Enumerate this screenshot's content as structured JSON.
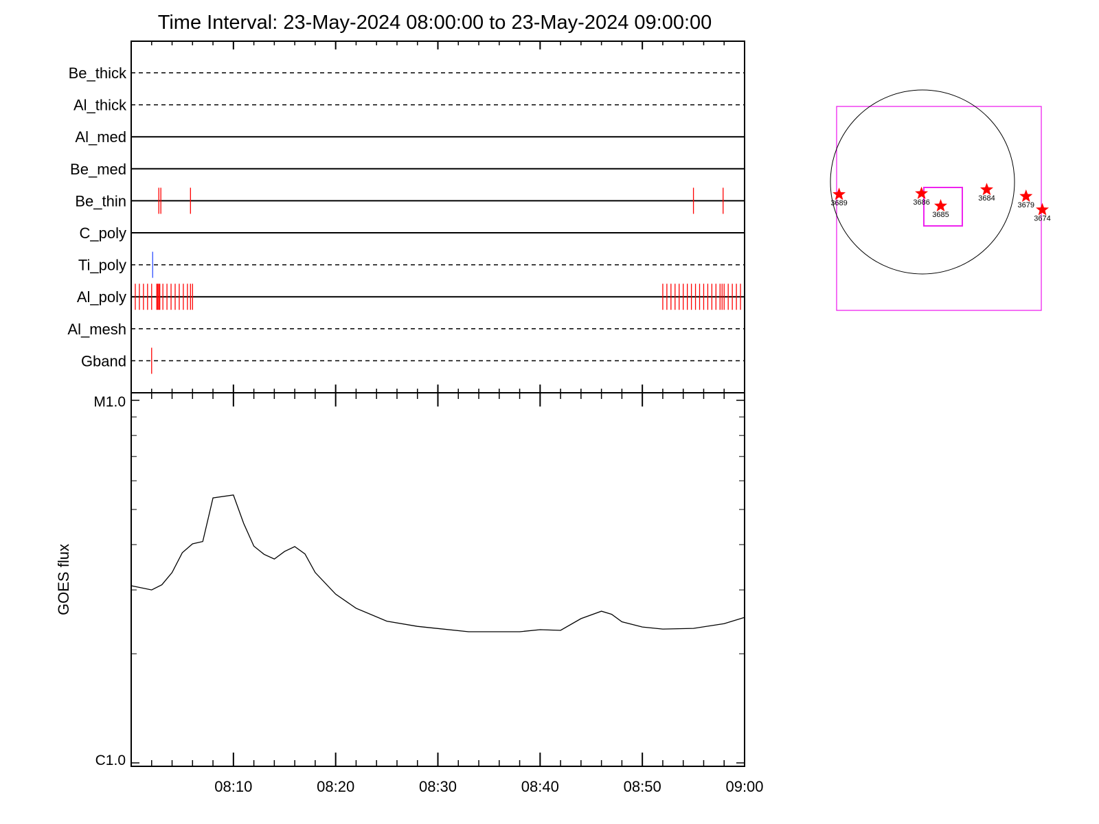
{
  "title": "Time Interval: 23-May-2024 08:00:00 to 23-May-2024 09:00:00",
  "colors": {
    "axis": "#000000",
    "event_red": "#ff0000",
    "event_blue": "#3050ff",
    "box": "#ee22ee",
    "star": "#ff0000"
  },
  "chart_data": [
    {
      "type": "event-timeline",
      "x_range": [
        "08:00",
        "09:00"
      ],
      "x_unit": "minutes after 08:00",
      "channels": [
        {
          "name": "Be_thick",
          "line": "dashed",
          "events": []
        },
        {
          "name": "Al_thick",
          "line": "dashed",
          "events": []
        },
        {
          "name": "Al_med",
          "line": "solid",
          "events": []
        },
        {
          "name": "Be_med",
          "line": "solid",
          "events": []
        },
        {
          "name": "Be_thin",
          "line": "solid",
          "color": "#ff0000",
          "events": [
            2.7,
            2.9,
            5.8,
            55.0,
            57.9
          ]
        },
        {
          "name": "C_poly",
          "line": "solid",
          "events": []
        },
        {
          "name": "Ti_poly",
          "line": "dashed",
          "color": "#3050ff",
          "events": [
            2.1
          ]
        },
        {
          "name": "Al_poly",
          "line": "solid",
          "color": "#ff0000",
          "events": [
            0.4,
            0.8,
            1.2,
            1.6,
            2.0,
            2.5,
            2.6,
            2.7,
            2.8,
            3.1,
            3.5,
            3.9,
            4.3,
            4.7,
            5.1,
            5.5,
            5.8,
            6.0,
            52.0,
            52.4,
            52.8,
            53.2,
            53.6,
            54.0,
            54.4,
            54.8,
            55.2,
            55.6,
            56.0,
            56.4,
            56.8,
            57.2,
            57.6,
            57.8,
            58.0,
            58.4,
            58.8,
            59.2,
            59.6
          ]
        },
        {
          "name": "Al_mesh",
          "line": "dashed",
          "events": []
        },
        {
          "name": "Gband",
          "line": "dashed",
          "color": "#ff0000",
          "events": [
            2.0
          ]
        }
      ]
    },
    {
      "type": "line",
      "ylabel": "GOES flux",
      "y_ticks": [
        "M1.0",
        "C1.0"
      ],
      "y_scale": "log",
      "ylim": [
        1e-06,
        1e-05
      ],
      "x_ticks": [
        "08:10",
        "08:20",
        "08:30",
        "08:40",
        "08:50",
        "09:00"
      ],
      "x_range": [
        "08:00",
        "09:00"
      ],
      "series": [
        {
          "x": [
            0,
            2,
            3,
            4,
            5,
            6,
            7,
            8,
            10,
            11,
            12,
            13,
            14,
            15,
            16,
            17,
            18,
            20,
            22,
            25,
            28,
            33,
            38,
            40,
            42,
            44,
            46,
            47,
            48,
            50,
            52,
            55,
            58,
            60
          ],
          "y": [
            3.08e-06,
            3e-06,
            3.1e-06,
            3.35e-06,
            3.8e-06,
            4.02e-06,
            4.08e-06,
            5.38e-06,
            5.48e-06,
            4.58e-06,
            3.96e-06,
            3.76e-06,
            3.65e-06,
            3.83e-06,
            3.95e-06,
            3.77e-06,
            3.35e-06,
            2.92e-06,
            2.67e-06,
            2.46e-06,
            2.38e-06,
            2.3e-06,
            2.3e-06,
            2.33e-06,
            2.32e-06,
            2.5e-06,
            2.62e-06,
            2.57e-06,
            2.45e-06,
            2.37e-06,
            2.34e-06,
            2.35e-06,
            2.42e-06,
            2.52e-06
          ]
        }
      ]
    }
  ],
  "solar_map": {
    "regions": [
      {
        "label": "3689",
        "x": -870,
        "y": -130
      },
      {
        "label": "3686",
        "x": -10,
        "y": -120
      },
      {
        "label": "3685",
        "x": 190,
        "y": -250
      },
      {
        "label": "3684",
        "x": 670,
        "y": -80
      },
      {
        "label": "3679",
        "x": 1080,
        "y": -150
      },
      {
        "label": "3674",
        "x": 1250,
        "y": -290
      }
    ]
  }
}
